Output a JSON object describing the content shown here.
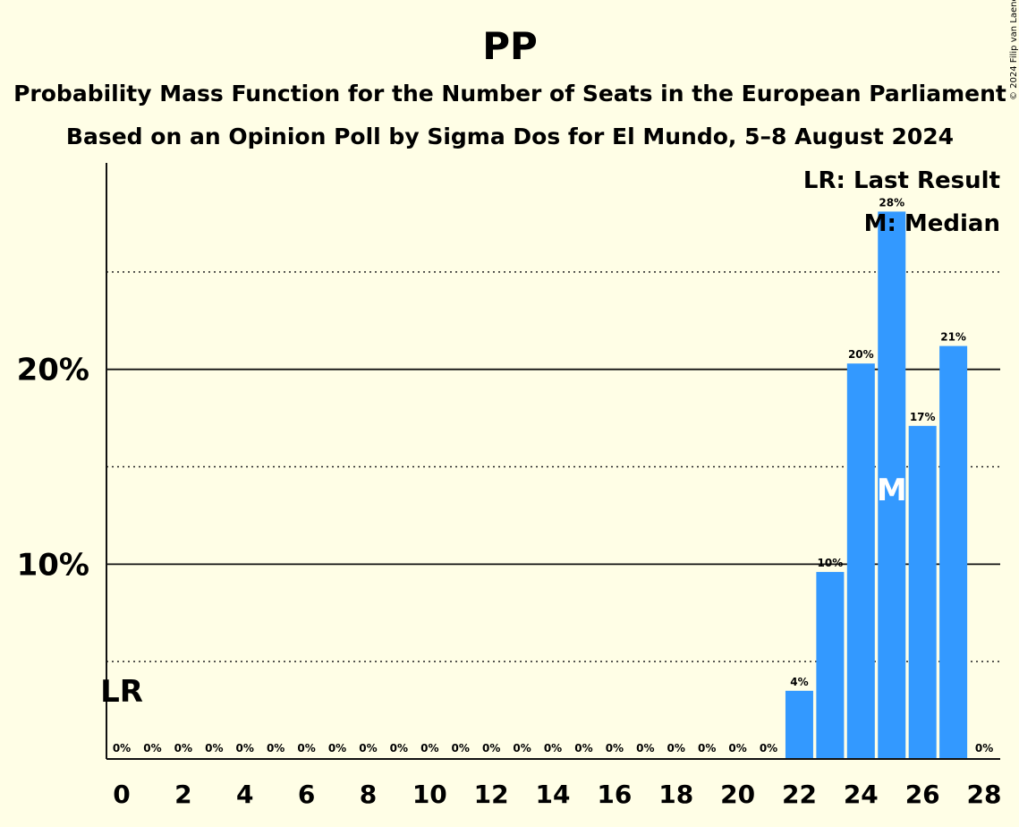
{
  "chart_data": {
    "type": "bar",
    "title": "PP",
    "subtitle": "Probability Mass Function for the Number of Seats in the European Parliament",
    "subtitle2": "Based on an Opinion Poll by Sigma Dos for El Mundo, 5–8 August 2024",
    "copyright": "© 2024 Filip van Laenen",
    "categories": [
      0,
      1,
      2,
      3,
      4,
      5,
      6,
      7,
      8,
      9,
      10,
      11,
      12,
      13,
      14,
      15,
      16,
      17,
      18,
      19,
      20,
      21,
      22,
      23,
      24,
      25,
      26,
      27,
      28
    ],
    "values": [
      0,
      0,
      0,
      0,
      0,
      0,
      0,
      0,
      0,
      0,
      0,
      0,
      0,
      0,
      0,
      0,
      0,
      0,
      0,
      0,
      0,
      0,
      3.5,
      9.6,
      20.3,
      28.1,
      17.1,
      21.2,
      0
    ],
    "value_labels": [
      "0%",
      "0%",
      "0%",
      "0%",
      "0%",
      "0%",
      "0%",
      "0%",
      "0%",
      "0%",
      "0%",
      "0%",
      "0%",
      "0%",
      "0%",
      "0%",
      "0%",
      "0%",
      "0%",
      "0%",
      "0%",
      "0%",
      "4%",
      "10%",
      "20%",
      "28%",
      "17%",
      "21%",
      "0%"
    ],
    "xticks": [
      0,
      2,
      4,
      6,
      8,
      10,
      12,
      14,
      16,
      18,
      20,
      22,
      24,
      26,
      28
    ],
    "yticks": [
      {
        "value": 10,
        "label": "10%"
      },
      {
        "value": 20,
        "label": "20%"
      }
    ],
    "minor_gridlines": [
      5,
      15,
      25
    ],
    "ylim": [
      0,
      30.6
    ],
    "last_result": 0,
    "last_result_label": "LR",
    "median": 25,
    "median_label": "M",
    "legend": [
      "LR: Last Result",
      "M: Median"
    ],
    "legend_position": "top-right",
    "bar_color": "#3399FF"
  }
}
